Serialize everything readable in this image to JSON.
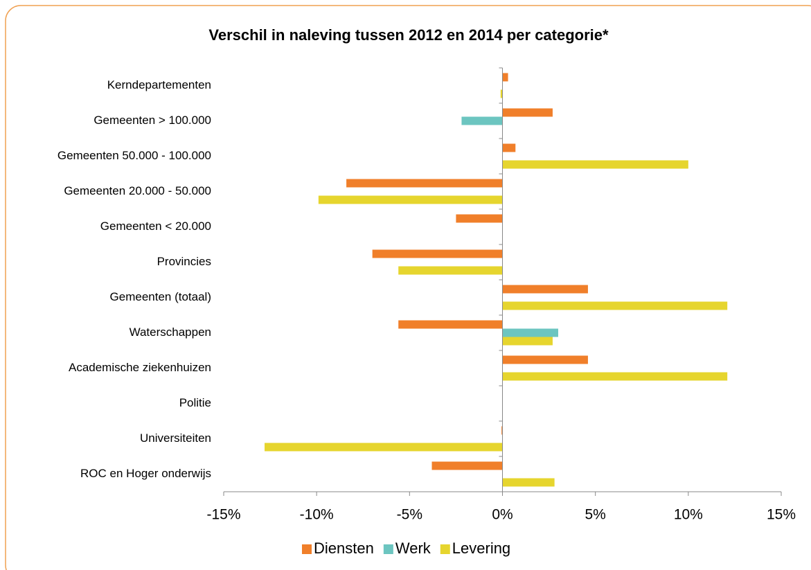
{
  "chart_data": {
    "type": "bar",
    "orientation": "horizontal",
    "title": "Verschil in naleving tussen 2012 en 2014 per categorie*",
    "categories": [
      "Kerndepartementen",
      "Gemeenten > 100.000",
      "Gemeenten 50.000 - 100.000",
      "Gemeenten 20.000 - 50.000",
      "Gemeenten < 20.000",
      "Provincies",
      "Gemeenten (totaal)",
      "Waterschappen",
      "Academische ziekenhuizen",
      "Politie",
      "Universiteiten",
      "ROC en Hoger onderwijs"
    ],
    "series": [
      {
        "name": "Diensten",
        "color": "#f07f2a",
        "values": [
          0.3,
          2.7,
          0.7,
          -8.4,
          -2.5,
          -7.0,
          4.6,
          -5.6,
          4.6,
          0,
          -0.05,
          -3.8
        ]
      },
      {
        "name": "Werk",
        "color": "#6cc5c0",
        "values": [
          0,
          -2.2,
          0,
          0,
          0,
          0,
          0,
          3.0,
          0,
          0,
          0,
          0
        ]
      },
      {
        "name": "Levering",
        "color": "#e6d52e",
        "values": [
          -0.1,
          0,
          10.0,
          -9.9,
          0,
          -5.6,
          12.1,
          2.7,
          12.1,
          0,
          -12.8,
          2.8
        ]
      }
    ],
    "xlim": [
      -15,
      15
    ],
    "xticks": [
      {
        "value": -15,
        "label": "-15%"
      },
      {
        "value": -10,
        "label": "-10%"
      },
      {
        "value": -5,
        "label": "-5%"
      },
      {
        "value": 0,
        "label": "0%"
      },
      {
        "value": 5,
        "label": "5%"
      },
      {
        "value": 10,
        "label": "10%"
      },
      {
        "value": 15,
        "label": "15%"
      }
    ],
    "legend": "bottom"
  }
}
